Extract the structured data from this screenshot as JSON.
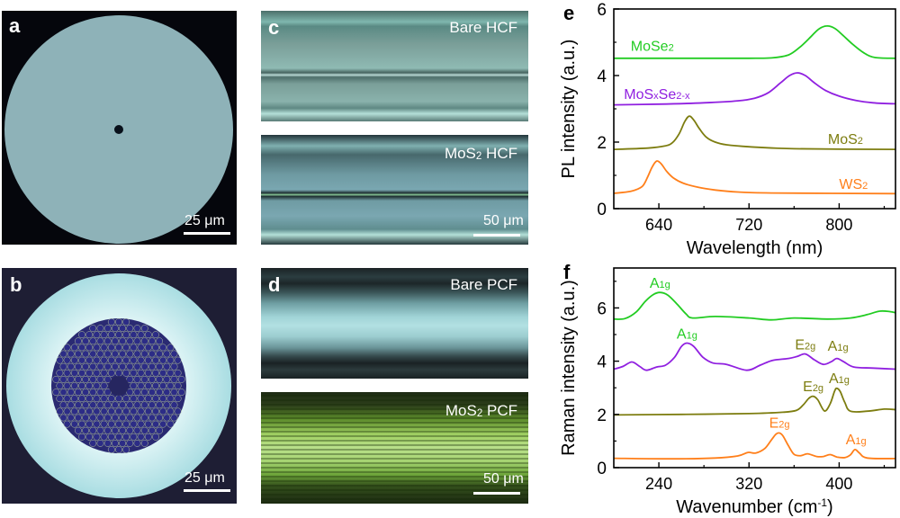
{
  "figure": {
    "panels": {
      "a": {
        "label": "a",
        "scale_bar": "25 μm",
        "description": "Hollow-core fiber cross-section"
      },
      "b": {
        "label": "b",
        "scale_bar": "25 μm",
        "description": "Photonic crystal fiber cross-section"
      },
      "c": {
        "label": "c",
        "top_caption": "Bare HCF",
        "bottom_caption_main": "MoS",
        "bottom_caption_sub": "2",
        "bottom_caption_tail": " HCF",
        "scale_bar": "50 μm"
      },
      "d": {
        "label": "d",
        "top_caption": "Bare PCF",
        "bottom_caption_main": "MoS",
        "bottom_caption_sub": "2",
        "bottom_caption_tail": " PCF",
        "scale_bar": "50 μm"
      }
    }
  },
  "chart_data": [
    {
      "id": "e",
      "panel_label": "e",
      "type": "line",
      "title": "",
      "xlabel": "Wavelength (nm)",
      "ylabel": "PL intensity (a.u.)",
      "xlim": [
        600,
        850
      ],
      "ylim": [
        0,
        6
      ],
      "xticks": [
        640,
        720,
        800
      ],
      "xminor": [
        680,
        760,
        840
      ],
      "yticks": [
        0,
        2,
        4,
        6
      ],
      "yminor": [
        1,
        3,
        5
      ],
      "grid": false,
      "series": [
        {
          "name": "MoSe2",
          "label_main": "MoSe",
          "label_sub": "2",
          "label_tail": "",
          "color": "#22cc22",
          "label_pos": [
            615,
            4.75
          ],
          "x": [
            600,
            660,
            720,
            740,
            755,
            765,
            775,
            782,
            789,
            796,
            803,
            812,
            822,
            832,
            850
          ],
          "y": [
            4.52,
            4.52,
            4.52,
            4.53,
            4.62,
            4.85,
            5.17,
            5.4,
            5.49,
            5.42,
            5.22,
            4.94,
            4.68,
            4.54,
            4.52
          ]
        },
        {
          "name": "MoSxSe2-x",
          "label_main": "MoS",
          "label_sub": "x",
          "label_tail2_main": "Se",
          "label_tail2_sub": "2-x",
          "color": "#9020e0",
          "label_pos": [
            609,
            3.3
          ],
          "x": [
            600,
            640,
            680,
            710,
            725,
            737,
            748,
            756,
            763,
            770,
            778,
            788,
            800,
            815,
            830,
            850
          ],
          "y": [
            3.12,
            3.14,
            3.18,
            3.24,
            3.32,
            3.48,
            3.78,
            4.0,
            4.08,
            4.0,
            3.78,
            3.55,
            3.38,
            3.25,
            3.18,
            3.15
          ]
        },
        {
          "name": "MoS2",
          "label_main": "MoS",
          "label_sub": "2",
          "label_tail": "",
          "color": "#7d7d10",
          "label_pos": [
            790,
            1.95
          ],
          "x": [
            600,
            630,
            645,
            652,
            658,
            663,
            667,
            671,
            676,
            682,
            690,
            700,
            720,
            760,
            850
          ],
          "y": [
            1.78,
            1.82,
            1.88,
            1.98,
            2.25,
            2.62,
            2.78,
            2.66,
            2.4,
            2.15,
            2.0,
            1.92,
            1.86,
            1.8,
            1.78
          ]
        },
        {
          "name": "WS2",
          "label_main": "WS",
          "label_sub": "2",
          "label_tail": "",
          "color": "#ff7f1a",
          "label_pos": [
            800,
            0.6
          ],
          "x": [
            600,
            615,
            625,
            630,
            634,
            638,
            642,
            647,
            653,
            662,
            675,
            690,
            710,
            740,
            850
          ],
          "y": [
            0.46,
            0.52,
            0.66,
            0.95,
            1.25,
            1.43,
            1.35,
            1.12,
            0.92,
            0.76,
            0.64,
            0.56,
            0.5,
            0.47,
            0.45
          ]
        }
      ]
    },
    {
      "id": "f",
      "panel_label": "f",
      "type": "line",
      "title": "",
      "xlabel": "Wavenumber (cm",
      "xlabel_sup": "-1",
      "xlabel_tail": ")",
      "ylabel": "Raman intensity (a.u.)",
      "xlim": [
        200,
        450
      ],
      "ylim": [
        0,
        7.5
      ],
      "xticks": [
        240,
        320,
        400
      ],
      "xminor": [
        280,
        360,
        440
      ],
      "yticks": [
        0,
        2,
        4,
        6
      ],
      "yminor": [
        1,
        3,
        5,
        7
      ],
      "grid": false,
      "series": [
        {
          "name": "MoSe2",
          "color": "#22cc22",
          "x": [
            200,
            210,
            220,
            228,
            235,
            241,
            248,
            256,
            264,
            270,
            290,
            320,
            340,
            360,
            390,
            410,
            425,
            436,
            445,
            450
          ],
          "y": [
            5.58,
            5.6,
            5.85,
            6.25,
            6.5,
            6.58,
            6.48,
            6.15,
            5.78,
            5.62,
            5.68,
            5.62,
            5.55,
            5.62,
            5.58,
            5.62,
            5.75,
            5.88,
            5.86,
            5.82
          ]
        },
        {
          "name": "MoSxSe2-x",
          "color": "#9020e0",
          "x": [
            200,
            208,
            216,
            223,
            229,
            238,
            246,
            254,
            260,
            265,
            271,
            279,
            288,
            300,
            318,
            330,
            341,
            355,
            363,
            370,
            378,
            386,
            393,
            398,
            404,
            413,
            430,
            450
          ],
          "y": [
            3.7,
            3.8,
            3.97,
            3.8,
            3.66,
            3.78,
            3.85,
            4.15,
            4.55,
            4.68,
            4.55,
            4.15,
            3.93,
            3.88,
            3.66,
            3.85,
            4.03,
            4.1,
            4.18,
            4.27,
            4.05,
            3.88,
            3.98,
            4.1,
            3.98,
            3.78,
            3.74,
            3.7
          ]
        },
        {
          "name": "MoS2",
          "color": "#7d7d10",
          "x": [
            200,
            260,
            320,
            350,
            362,
            368,
            373,
            377,
            381,
            387,
            392,
            396,
            398,
            401,
            405,
            410,
            425,
            440,
            450
          ],
          "y": [
            1.98,
            2.0,
            2.03,
            2.08,
            2.15,
            2.35,
            2.6,
            2.68,
            2.55,
            2.13,
            2.4,
            2.88,
            2.98,
            2.85,
            2.45,
            2.12,
            2.12,
            2.2,
            2.18
          ]
        },
        {
          "name": "WS2",
          "color": "#ff7f1a",
          "x": [
            200,
            250,
            290,
            310,
            319,
            326,
            334,
            340,
            344,
            347,
            350,
            355,
            360,
            366,
            372,
            380,
            386,
            392,
            398,
            405,
            410,
            414,
            418,
            425,
            450
          ],
          "y": [
            0.35,
            0.33,
            0.36,
            0.44,
            0.57,
            0.55,
            0.72,
            1.05,
            1.26,
            1.3,
            1.2,
            0.82,
            0.5,
            0.45,
            0.52,
            0.42,
            0.42,
            0.49,
            0.4,
            0.38,
            0.48,
            0.68,
            0.55,
            0.36,
            0.34
          ]
        }
      ],
      "annotations": [
        {
          "series": "MoSe2",
          "text_main": "A",
          "text_sub": "1g",
          "x": 241,
          "y": 6.75,
          "color": "#22cc22"
        },
        {
          "series": "MoSxSe2-x",
          "text_main": "A",
          "text_sub": "1g",
          "x": 265,
          "y": 4.85,
          "color": "#22cc22"
        },
        {
          "series": "MoSxSe2-x",
          "text_main": "E",
          "text_sub": "2g",
          "x": 370,
          "y": 4.45,
          "color": "#7d7d10"
        },
        {
          "series": "MoSxSe2-x",
          "text_main": "A",
          "text_sub": "1g",
          "x": 399,
          "y": 4.4,
          "color": "#7d7d10"
        },
        {
          "series": "MoS2",
          "text_main": "E",
          "text_sub": "2g",
          "x": 377,
          "y": 2.88,
          "color": "#7d7d10"
        },
        {
          "series": "MoS2",
          "text_main": "A",
          "text_sub": "1g",
          "x": 400,
          "y": 3.18,
          "color": "#7d7d10"
        },
        {
          "series": "WS2",
          "text_main": "E",
          "text_sub": "2g",
          "x": 347,
          "y": 1.5,
          "color": "#ff7f1a"
        },
        {
          "series": "WS2",
          "text_main": "A",
          "text_sub": "1g",
          "x": 415,
          "y": 0.88,
          "color": "#ff7f1a"
        }
      ]
    }
  ]
}
